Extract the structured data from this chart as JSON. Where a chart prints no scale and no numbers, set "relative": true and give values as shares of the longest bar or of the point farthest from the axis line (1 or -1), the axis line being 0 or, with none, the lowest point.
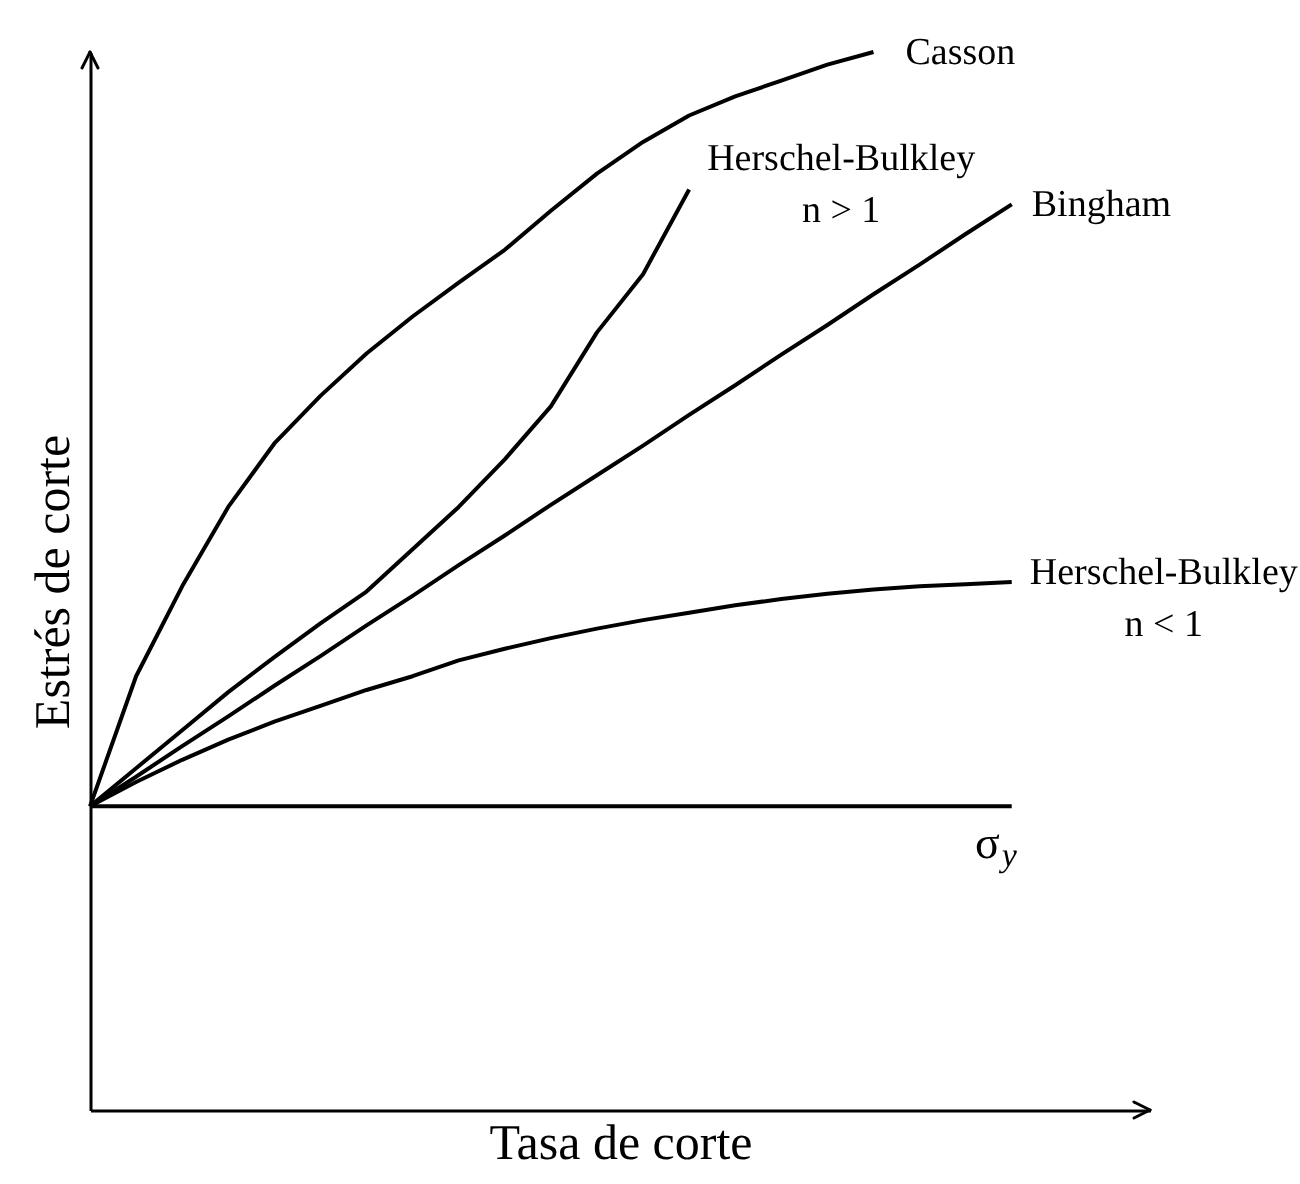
{
  "chart_data": {
    "type": "line",
    "relative": true,
    "xlabel": "Tasa de corte",
    "ylabel": "Estrés de corte",
    "tick_labels": false,
    "grid": false,
    "marker": "none",
    "line_style": "solid",
    "categories": [
      null,
      null,
      null,
      null,
      null,
      null,
      null,
      null,
      null,
      null,
      null,
      null,
      null,
      null,
      null,
      null,
      null,
      null,
      null,
      null,
      null,
      null,
      null,
      null
    ],
    "series": [
      {
        "name": "Casson",
        "color": "#000000",
        "values": [
          0.287,
          0.41,
          0.495,
          0.57,
          0.63,
          0.675,
          0.715,
          0.75,
          0.782,
          0.813,
          0.85,
          0.885,
          0.915,
          0.94,
          0.958,
          0.973,
          0.988,
          1.0,
          null,
          null,
          null,
          null,
          null,
          null
        ]
      },
      {
        "name": "Herschel-Bulkley\nn > 1",
        "color": "#000000",
        "values": [
          0.287,
          0.323,
          0.359,
          0.395,
          0.428,
          0.46,
          0.49,
          0.53,
          0.57,
          0.615,
          0.665,
          0.735,
          0.79,
          0.87,
          null,
          null,
          null,
          null,
          null,
          null,
          null,
          null,
          null,
          null
        ]
      },
      {
        "name": "Bingham",
        "color": "#000000",
        "values": [
          0.287,
          0.315,
          0.344,
          0.372,
          0.401,
          0.429,
          0.458,
          0.486,
          0.515,
          0.543,
          0.572,
          0.6,
          0.628,
          0.657,
          0.685,
          0.714,
          0.742,
          0.771,
          0.799,
          0.828,
          0.856,
          null,
          null,
          null
        ]
      },
      {
        "name": "Herschel-Bulkley\nn < 1",
        "color": "#000000",
        "values": [
          0.287,
          0.31,
          0.331,
          0.35,
          0.367,
          0.382,
          0.397,
          0.41,
          0.425,
          0.436,
          0.446,
          0.455,
          0.463,
          0.47,
          0.477,
          0.483,
          0.488,
          0.492,
          0.495,
          0.497,
          0.499,
          null,
          null,
          null
        ]
      },
      {
        "name": "σ$_{y}$",
        "color": "#000000",
        "values": [
          0.287,
          0.287,
          0.287,
          0.287,
          0.287,
          0.287,
          0.287,
          0.287,
          0.287,
          0.287,
          0.287,
          0.287,
          0.287,
          0.287,
          0.287,
          0.287,
          0.287,
          0.287,
          0.287,
          0.287,
          0.287,
          null,
          null,
          null
        ]
      }
    ]
  }
}
